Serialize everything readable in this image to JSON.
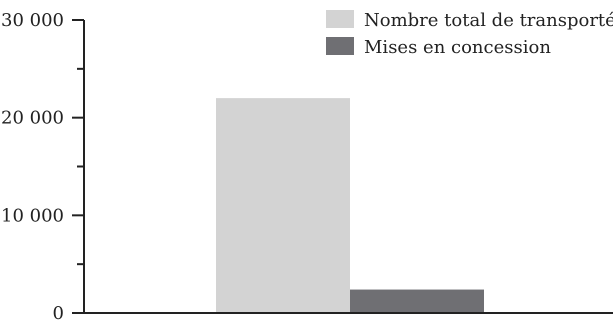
{
  "chart_data": {
    "type": "bar",
    "title": "",
    "xlabel": "",
    "ylabel": "",
    "ylim": [
      0,
      30000
    ],
    "y_tick_values": [
      0,
      10000,
      20000,
      30000
    ],
    "y_tick_labels": [
      "0",
      "10 000",
      "20 000",
      "30 000"
    ],
    "y_minor_tick_values": [
      5000,
      15000,
      25000
    ],
    "grid": false,
    "legend_position": "top-right",
    "categories": [
      ""
    ],
    "series": [
      {
        "name": "Nombre total de transportés",
        "color": "#d3d3d3",
        "values": [
          22000
        ]
      },
      {
        "name": "Mises en concession",
        "color": "#6f6f73",
        "values": [
          2400
        ]
      }
    ]
  }
}
